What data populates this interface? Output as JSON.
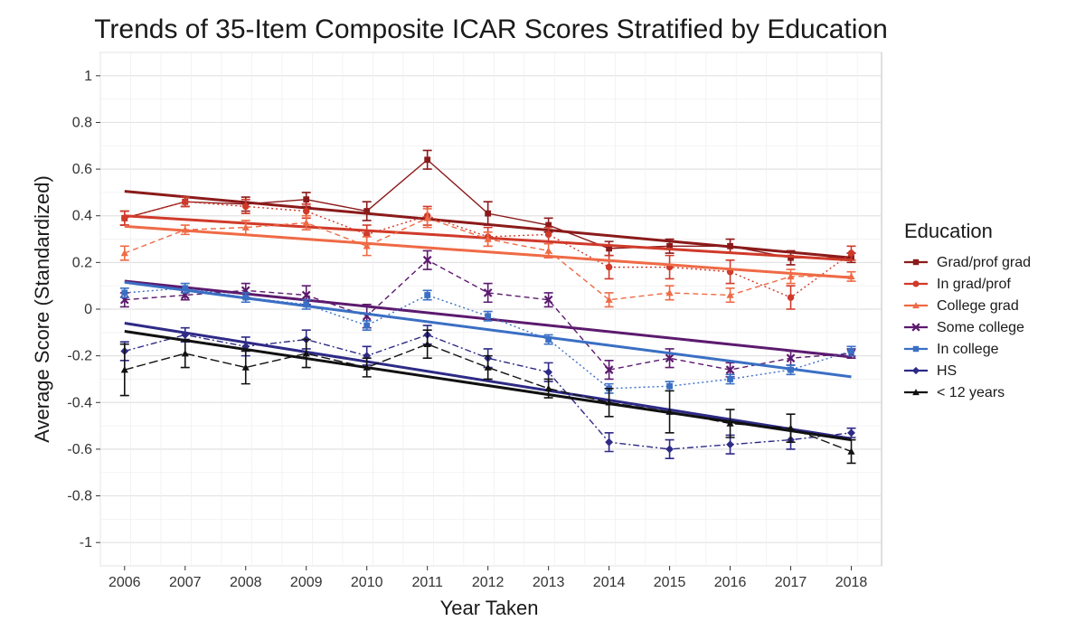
{
  "chart_data": {
    "type": "line",
    "title": "Trends of 35-Item Composite ICAR Scores Stratified by Education",
    "xlabel": "Year Taken",
    "ylabel": "Average Score (Standardized)",
    "x": [
      2006,
      2007,
      2008,
      2009,
      2010,
      2011,
      2012,
      2013,
      2014,
      2015,
      2016,
      2017,
      2018
    ],
    "xlim": [
      2005.6,
      2018.5
    ],
    "ylim": [
      -1.1,
      1.1
    ],
    "yticks": [
      1,
      0.8,
      0.6,
      0.4,
      0.2,
      0,
      -0.2,
      -0.4,
      -0.6,
      -0.8,
      -1
    ],
    "ytick_labels": [
      "1",
      "0.8",
      "0.6",
      "0.4",
      "0.2",
      "0",
      "-0.2",
      "-0.4",
      "-0.6",
      "-0.8",
      "-1"
    ],
    "xtick_labels": [
      "2006",
      "2007",
      "2008",
      "2009",
      "2010",
      "2011",
      "2012",
      "2013",
      "2014",
      "2015",
      "2016",
      "2017",
      "2018"
    ],
    "grid": true,
    "legend": {
      "title": "Education",
      "position": "right"
    },
    "series": [
      {
        "name": "Grad/prof grad",
        "color": "#8b1a1a",
        "dash": "solid",
        "marker": "square",
        "values": [
          0.39,
          0.46,
          0.45,
          0.47,
          0.42,
          0.64,
          0.41,
          0.36,
          0.26,
          0.27,
          0.27,
          0.22,
          0.22
        ],
        "errors": [
          0.03,
          0.02,
          0.03,
          0.03,
          0.04,
          0.04,
          0.05,
          0.03,
          0.03,
          0.03,
          0.03,
          0.03,
          0.02
        ],
        "trend": [
          0.505,
          0.22
        ]
      },
      {
        "name": "In grad/prof",
        "color": "#d03a2a",
        "dash": "dotted",
        "marker": "circle",
        "values": [
          0.39,
          0.46,
          0.44,
          0.42,
          0.32,
          0.4,
          0.31,
          0.32,
          0.18,
          0.18,
          0.16,
          0.05,
          0.24
        ],
        "errors": [
          0.03,
          0.02,
          0.03,
          0.03,
          0.04,
          0.04,
          0.04,
          0.03,
          0.05,
          0.05,
          0.05,
          0.05,
          0.03
        ],
        "trend": [
          0.4,
          0.21
        ]
      },
      {
        "name": "College grad",
        "color": "#ef6a45",
        "dash": "dashed",
        "marker": "triangle",
        "values": [
          0.24,
          0.34,
          0.35,
          0.37,
          0.27,
          0.39,
          0.3,
          0.25,
          0.04,
          0.07,
          0.06,
          0.14,
          0.14
        ],
        "errors": [
          0.03,
          0.02,
          0.03,
          0.03,
          0.04,
          0.04,
          0.03,
          0.03,
          0.03,
          0.03,
          0.03,
          0.03,
          0.02
        ],
        "trend": [
          0.355,
          0.135
        ]
      },
      {
        "name": "Some college",
        "color": "#5c1a6e",
        "dash": "dashed",
        "marker": "cross",
        "values": [
          0.04,
          0.06,
          0.08,
          0.06,
          -0.03,
          0.21,
          0.07,
          0.04,
          -0.26,
          -0.21,
          -0.26,
          -0.21,
          -0.19
        ],
        "errors": [
          0.03,
          0.02,
          0.03,
          0.04,
          0.05,
          0.04,
          0.04,
          0.03,
          0.04,
          0.04,
          0.03,
          0.03,
          0.02
        ],
        "trend": [
          0.12,
          -0.205
        ]
      },
      {
        "name": "In college",
        "color": "#3a6fc4",
        "dash": "dotted",
        "marker": "square",
        "values": [
          0.07,
          0.09,
          0.05,
          0.02,
          -0.07,
          0.06,
          -0.03,
          -0.13,
          -0.34,
          -0.33,
          -0.3,
          -0.26,
          -0.18
        ],
        "errors": [
          0.02,
          0.02,
          0.02,
          0.02,
          0.02,
          0.02,
          0.02,
          0.02,
          0.02,
          0.02,
          0.02,
          0.02,
          0.02
        ],
        "trend": [
          0.115,
          -0.29
        ]
      },
      {
        "name": "HS",
        "color": "#2e2a86",
        "dash": "dashdot",
        "marker": "diamond",
        "values": [
          -0.18,
          -0.11,
          -0.16,
          -0.13,
          -0.2,
          -0.11,
          -0.21,
          -0.27,
          -0.57,
          -0.6,
          -0.58,
          -0.56,
          -0.53
        ],
        "errors": [
          0.04,
          0.03,
          0.04,
          0.04,
          0.04,
          0.04,
          0.04,
          0.04,
          0.04,
          0.04,
          0.04,
          0.04,
          0.02
        ],
        "trend": [
          -0.06,
          -0.555
        ]
      },
      {
        "name": "< 12 years",
        "color": "#111111",
        "dash": "longdash",
        "marker": "triangle",
        "values": [
          -0.26,
          -0.19,
          -0.25,
          -0.19,
          -0.25,
          -0.15,
          -0.25,
          -0.34,
          -0.4,
          -0.44,
          -0.49,
          -0.51,
          -0.61
        ],
        "errors": [
          0.11,
          0.06,
          0.07,
          0.06,
          0.04,
          0.06,
          0.05,
          0.04,
          0.06,
          0.09,
          0.06,
          0.06,
          0.05
        ],
        "trend": [
          -0.095,
          -0.56
        ]
      }
    ]
  }
}
